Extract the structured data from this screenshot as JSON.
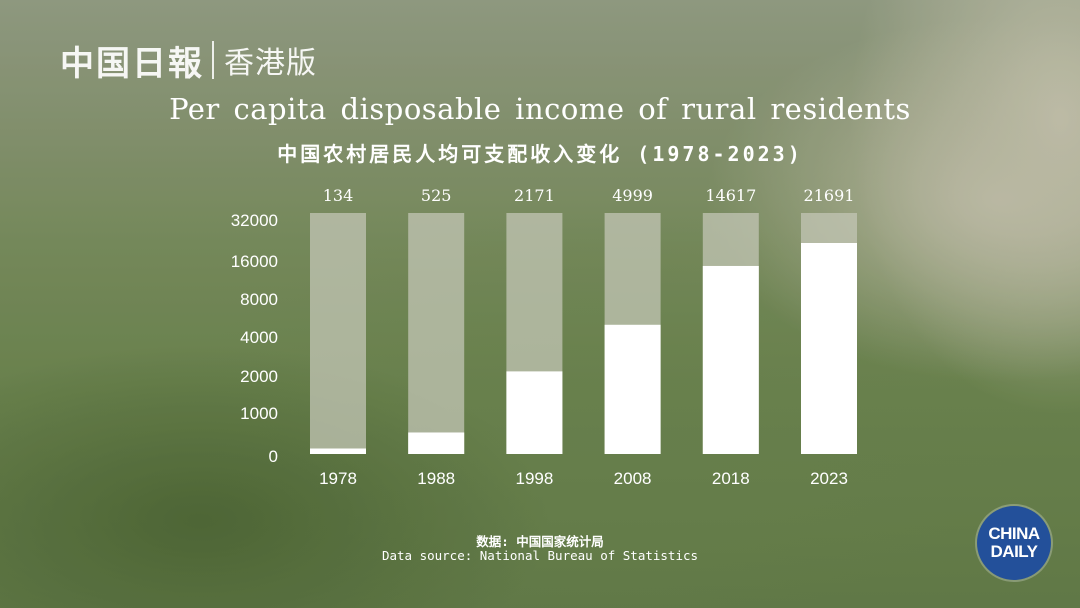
{
  "logo": {
    "name": "中国日報",
    "edition": "香港版"
  },
  "badge": {
    "line1": "CHINA",
    "line2": "DAILY"
  },
  "source": {
    "zh": "数据: 中国国家统计局",
    "en": "Data source: National Bureau of Statistics"
  },
  "colors": {
    "bar_fill": "#ffffff",
    "bar_track": "#c3c5b6",
    "badge_bg": "#23509a"
  },
  "chart_data": {
    "type": "bar",
    "title": "Per capita disposable income of rural residents",
    "subtitle": "中国农村居民人均可支配收入变化 (1978-2023)",
    "categories": [
      "1978",
      "1988",
      "1998",
      "2008",
      "2018",
      "2023"
    ],
    "values": [
      134,
      525,
      2171,
      4999,
      14617,
      21691
    ],
    "data_labels": [
      "134",
      "525",
      "2171",
      "4999",
      "14617",
      "21691"
    ],
    "y_ticks": [
      0,
      1000,
      2000,
      4000,
      8000,
      16000,
      32000
    ],
    "y_tick_labels": [
      "0",
      "1000",
      "2000",
      "4000",
      "8000",
      "16000",
      "32000"
    ],
    "y_scale": "log2",
    "ylim": [
      0,
      32000
    ],
    "grid": false,
    "legend": "none"
  }
}
